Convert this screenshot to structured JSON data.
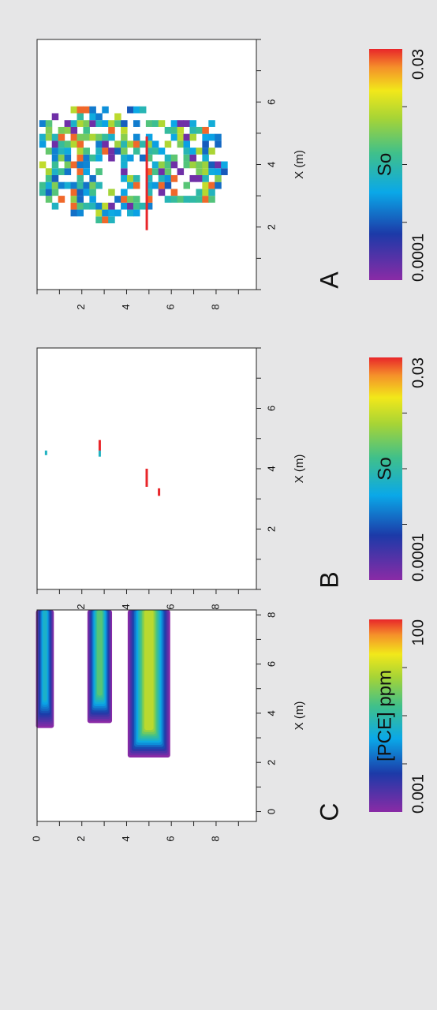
{
  "chart_data": [
    {
      "panel_label": "A",
      "type": "heatmap",
      "xlabel": "X (m)",
      "x_ticks": [
        "2",
        "4",
        "6"
      ],
      "y_ticks": [
        "2",
        "4",
        "6",
        "8"
      ],
      "xlim": [
        0,
        8
      ],
      "ylim": [
        0,
        9.8
      ],
      "colorbar": {
        "label": "So",
        "min_label": "0.0001",
        "max_label": "0.03",
        "scale": "log"
      }
    },
    {
      "panel_label": "B",
      "type": "heatmap",
      "xlabel": "X (m)",
      "x_ticks": [
        "2",
        "4",
        "6"
      ],
      "y_ticks": [
        "2",
        "4",
        "6",
        "8"
      ],
      "xlim": [
        0,
        8
      ],
      "ylim": [
        0,
        9.8
      ],
      "marks": [
        {
          "x0": 4.45,
          "x1": 4.6,
          "y": 0.4,
          "level": 0.45
        },
        {
          "x0": 4.4,
          "x1": 4.6,
          "y": 2.8,
          "level": 0.45
        },
        {
          "x0": 4.6,
          "x1": 4.95,
          "y": 2.8,
          "level": 1.0
        },
        {
          "x0": 3.4,
          "x1": 4.0,
          "y": 4.9,
          "level": 1.0
        },
        {
          "x0": 3.1,
          "x1": 3.35,
          "y": 5.45,
          "level": 1.0
        }
      ],
      "colorbar": {
        "label": "So",
        "min_label": "0.0001",
        "max_label": "0.03",
        "scale": "log"
      }
    },
    {
      "panel_label": "C",
      "type": "heatmap",
      "xlabel": "X (m)",
      "x_ticks": [
        "0",
        "2",
        "4",
        "6",
        "8"
      ],
      "y_ticks": [
        "0",
        "2",
        "4",
        "6",
        "8"
      ],
      "xlim": [
        -0.4,
        8.2
      ],
      "ylim": [
        0,
        9.8
      ],
      "plumes": [
        {
          "y_center": 0.35,
          "half_width": 0.4,
          "x_start": 3.4,
          "peak": 0.45
        },
        {
          "y_center": 2.8,
          "half_width": 0.55,
          "x_start": 3.6,
          "peak": 0.6
        },
        {
          "y_center": 5.0,
          "half_width": 0.95,
          "x_start": 2.2,
          "peak": 0.75
        }
      ],
      "colorbar": {
        "label": "[PCE] ppm",
        "min_label": "0.001",
        "max_label": "100",
        "scale": "log"
      }
    }
  ]
}
